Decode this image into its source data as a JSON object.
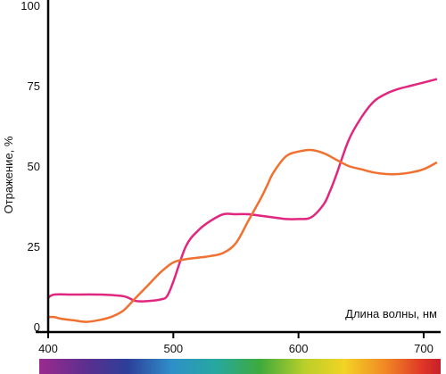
{
  "chart_data": {
    "type": "line",
    "title": "",
    "xlabel": "Длина волны, нм",
    "ylabel": "Отражение, %",
    "xlim": [
      400,
      710
    ],
    "ylim": [
      0,
      100
    ],
    "x_ticks": [
      400,
      500,
      600,
      700
    ],
    "y_ticks": [
      0,
      25,
      50,
      75,
      100
    ],
    "grid": false,
    "legend": "none",
    "spectrum_bar": true,
    "series": [
      {
        "color": "#e0267e",
        "x": [
          400,
          405,
          420,
          440,
          460,
          470,
          480,
          490,
          495,
          500,
          510,
          520,
          530,
          540,
          550,
          560,
          570,
          580,
          590,
          600,
          610,
          620,
          625,
          630,
          640,
          650,
          660,
          670,
          680,
          690,
          700,
          710
        ],
        "y": [
          9,
          10,
          10,
          10,
          9.5,
          8,
          8,
          8.5,
          9.5,
          14,
          25,
          30,
          33,
          35,
          35,
          35,
          34.5,
          34,
          33.5,
          33.5,
          34,
          38,
          42,
          47,
          58,
          65,
          70,
          72.5,
          74,
          75,
          76,
          77
        ]
      },
      {
        "color": "#f07030",
        "x": [
          400,
          405,
          410,
          420,
          430,
          440,
          450,
          460,
          470,
          480,
          490,
          500,
          510,
          520,
          530,
          540,
          550,
          560,
          570,
          575,
          580,
          590,
          600,
          610,
          620,
          630,
          640,
          650,
          660,
          670,
          680,
          690,
          700,
          710
        ],
        "y": [
          3,
          3,
          2.5,
          2,
          1.5,
          2,
          3,
          5,
          9,
          13,
          17,
          20,
          21,
          21.5,
          22,
          23,
          26,
          33,
          40,
          44,
          48,
          53,
          54.5,
          55,
          54,
          52,
          50,
          49,
          48,
          47.5,
          47.5,
          48,
          49,
          51
        ]
      }
    ]
  }
}
